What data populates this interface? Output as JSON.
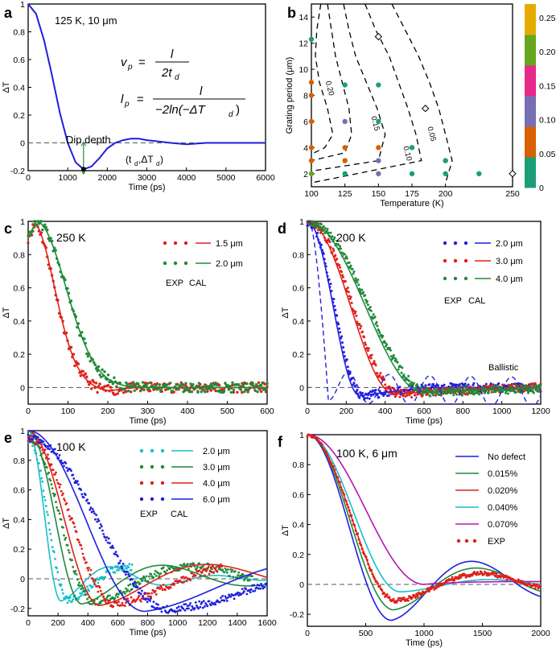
{
  "chart_data": [
    {
      "panel": "a",
      "type": "line",
      "title": "125 K, 10 μm",
      "xlabel": "Time (ps)",
      "ylabel": "ΔT",
      "xlim": [
        0,
        6000
      ],
      "ylim": [
        -0.2,
        1.0
      ],
      "xticks": [
        0,
        1000,
        2000,
        3000,
        4000,
        5000,
        6000
      ],
      "yticks": [
        -0.2,
        0,
        0.2,
        0.4,
        0.6,
        0.8,
        1
      ],
      "ytick_labels": [
        "-0.2",
        "0",
        "0.2",
        "0.4",
        "0.6",
        "0.8",
        "1"
      ],
      "series": [
        {
          "name": "ΔT curve",
          "color": "#1f1fe0",
          "x": [
            0,
            200,
            400,
            600,
            800,
            1000,
            1200,
            1400,
            1600,
            1800,
            2000,
            2200,
            2400,
            2600,
            2800,
            3000,
            3300,
            3600,
            4000,
            4500,
            5000,
            6000
          ],
          "y": [
            1.0,
            0.93,
            0.74,
            0.49,
            0.22,
            0.0,
            -0.14,
            -0.19,
            -0.17,
            -0.11,
            -0.04,
            0.0,
            0.02,
            0.03,
            0.03,
            0.02,
            0.01,
            0.0,
            -0.01,
            0.0,
            0.0,
            0.0
          ]
        }
      ],
      "annotations": {
        "formula_vp": "v_p = l / (2 t_d)",
        "formula_lp": "l_p = l / (−2 ln(−ΔT_d))",
        "dip_label": "Dip depth",
        "point_label": "(t_d, ΔT_d)",
        "dip_point": [
          1400,
          -0.19
        ]
      }
    },
    {
      "panel": "b",
      "type": "heatmap",
      "xlabel": "Temperature (K)",
      "ylabel": "Grating period (μm)",
      "xlim": [
        100,
        250
      ],
      "ylim": [
        1,
        15
      ],
      "xticks": [
        100,
        125,
        150,
        175,
        200,
        250
      ],
      "yticks": [
        2,
        4,
        6,
        8,
        10,
        12,
        14
      ],
      "colorbar": {
        "ticks": [
          "0",
          "0.05",
          "0.10",
          "0.15",
          "0.20",
          "0.25"
        ],
        "colors": [
          "#1b9e77",
          "#d95f02",
          "#7570b3",
          "#e7298a",
          "#66a61e",
          "#e6ab02"
        ]
      },
      "contour_labels": [
        "0.20",
        "0.15",
        "0.10",
        "0.05"
      ],
      "points": [
        {
          "T": 100,
          "L": 12.3,
          "c": "#1b9e77"
        },
        {
          "T": 100,
          "L": 9.0,
          "c": "#d95f02"
        },
        {
          "T": 100,
          "L": 8.0,
          "c": "#d95f02"
        },
        {
          "T": 100,
          "L": 6.0,
          "c": "#d95f02"
        },
        {
          "T": 100,
          "L": 4.0,
          "c": "#d95f02"
        },
        {
          "T": 100,
          "L": 3.0,
          "c": "#d95f02"
        },
        {
          "T": 100,
          "L": 2.0,
          "c": "#66a61e"
        },
        {
          "T": 125,
          "L": 8.8,
          "c": "#1b9e77"
        },
        {
          "T": 125,
          "L": 6.0,
          "c": "#7570b3"
        },
        {
          "T": 125,
          "L": 4.0,
          "c": "#d95f02"
        },
        {
          "T": 125,
          "L": 3.0,
          "c": "#d95f02"
        },
        {
          "T": 125,
          "L": 2.0,
          "c": "#1b9e77"
        },
        {
          "T": 150,
          "L": 8.8,
          "c": "#1b9e77"
        },
        {
          "T": 150,
          "L": 6.0,
          "c": "#1b9e77"
        },
        {
          "T": 150,
          "L": 4.0,
          "c": "#d95f02"
        },
        {
          "T": 150,
          "L": 3.0,
          "c": "#7570b3"
        },
        {
          "T": 150,
          "L": 2.0,
          "c": "#7570b3"
        },
        {
          "T": 175,
          "L": 4.0,
          "c": "#1b9e77"
        },
        {
          "T": 175,
          "L": 2.0,
          "c": "#1b9e77"
        },
        {
          "T": 200,
          "L": 3.0,
          "c": "#1b9e77"
        },
        {
          "T": 200,
          "L": 2.0,
          "c": "#1b9e77"
        },
        {
          "T": 225,
          "L": 2.0,
          "c": "#1b9e77"
        }
      ],
      "diamonds": [
        {
          "T": 150,
          "L": 12.5
        },
        {
          "T": 185,
          "L": 7.0
        },
        {
          "T": 250,
          "L": 2.0
        }
      ]
    },
    {
      "panel": "c",
      "type": "line",
      "title": "250 K",
      "xlabel": "Time (ps)",
      "ylabel": "ΔT",
      "xlim": [
        0,
        600
      ],
      "ylim": [
        -0.1,
        1.0
      ],
      "xticks": [
        0,
        100,
        200,
        300,
        400,
        500,
        600
      ],
      "yticks": [
        0,
        0.2,
        0.4,
        0.6,
        0.8,
        1
      ],
      "ytick_labels": [
        "0",
        "0.2",
        "0.4",
        "0.6",
        "0.8",
        "1"
      ],
      "legend_footer": [
        "EXP",
        "CAL"
      ],
      "series": [
        {
          "name": "1.5 μm",
          "color": "#e0201b",
          "tau": 90,
          "model": "gauss"
        },
        {
          "name": "2.0 μm",
          "color": "#1f8a3a",
          "tau": 120,
          "model": "gauss"
        }
      ]
    },
    {
      "panel": "d",
      "type": "line",
      "title": "200 K",
      "xlabel": "Time (ps)",
      "ylabel": "ΔT",
      "xlim": [
        0,
        1200
      ],
      "ylim": [
        -0.1,
        1.0
      ],
      "xticks": [
        0,
        200,
        400,
        600,
        800,
        1000,
        1200
      ],
      "yticks": [
        0,
        0.2,
        0.4,
        0.6,
        0.8,
        1
      ],
      "ytick_labels": [
        "0",
        "0.2",
        "0.4",
        "0.6",
        "0.8",
        "1"
      ],
      "legend_footer": [
        "EXP",
        "CAL"
      ],
      "annotation": "Ballistic",
      "series": [
        {
          "name": "2.0 μm",
          "color": "#1f1fe0",
          "td": 270,
          "dip": 0.05
        },
        {
          "name": "3.0 μm",
          "color": "#e0201b",
          "td": 450,
          "dip": 0.04
        },
        {
          "name": "4.0 μm",
          "color": "#1f8a3a",
          "td": 600,
          "dip": 0.03
        }
      ],
      "ballistic": {
        "color": "#1f1fe0",
        "period": 210,
        "dip": -0.04
      }
    },
    {
      "panel": "e",
      "type": "line",
      "title": "100 K",
      "xlabel": "Time (ps)",
      "ylabel": "ΔT",
      "xlim": [
        0,
        1600
      ],
      "ylim": [
        -0.25,
        1.0
      ],
      "xticks": [
        0,
        200,
        400,
        600,
        800,
        1000,
        1200,
        1400,
        1600
      ],
      "yticks": [
        -0.2,
        0,
        0.2,
        0.4,
        0.6,
        0.8,
        1
      ],
      "ytick_labels": [
        "-0.2",
        "0",
        "0.2",
        "0.4",
        "0.6",
        "0.8",
        "1"
      ],
      "legend_footer": [
        "EXP",
        "CAL"
      ],
      "series": [
        {
          "name": "2.0 μm",
          "color": "#19c0c8",
          "td": 220,
          "dip": 0.15
        },
        {
          "name": "3.0 μm",
          "color": "#1f8a3a",
          "td": 360,
          "dip": 0.17
        },
        {
          "name": "4.0 μm",
          "color": "#e0201b",
          "td": 480,
          "dip": 0.18
        },
        {
          "name": "6.0 μm",
          "color": "#1f1fe0",
          "td": 780,
          "dip": 0.22
        }
      ]
    },
    {
      "panel": "f",
      "type": "line",
      "title": "100 K, 6 μm",
      "xlabel": "Time (ps)",
      "ylabel": "ΔT",
      "xlim": [
        0,
        2000
      ],
      "ylim": [
        -0.28,
        1.0
      ],
      "xticks": [
        0,
        500,
        1000,
        1500,
        2000
      ],
      "yticks": [
        -0.2,
        0,
        0.2,
        0.4,
        0.6,
        0.8,
        1
      ],
      "ytick_labels": [
        "-0.2",
        "0",
        "0.2",
        "0.4",
        "0.6",
        "0.8",
        "1"
      ],
      "series": [
        {
          "name": "No defect",
          "color": "#1f1fe0",
          "td": 720,
          "dip": 0.24
        },
        {
          "name": "0.015%",
          "color": "#1f8a3a",
          "td": 740,
          "dip": 0.17
        },
        {
          "name": "0.020%",
          "color": "#e0201b",
          "td": 760,
          "dip": 0.11
        },
        {
          "name": "0.040%",
          "color": "#19c0c8",
          "td": 800,
          "dip": 0.05
        },
        {
          "name": "0.070%",
          "color": "#b515b5",
          "td": 1000,
          "dip": 0.0
        }
      ],
      "exp_label": "EXP",
      "exp_color": "#e0201b"
    }
  ]
}
